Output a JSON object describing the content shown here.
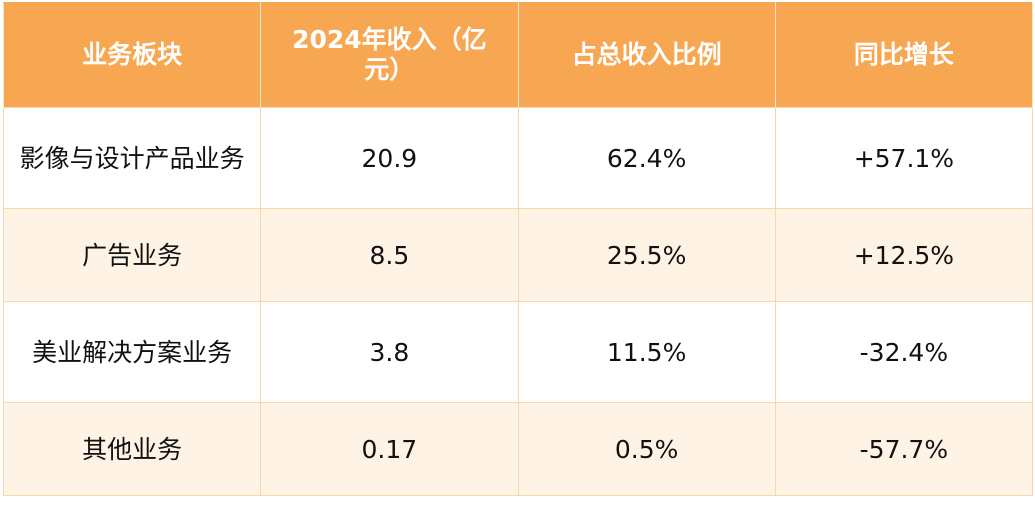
{
  "table": {
    "headers": [
      "业务板块",
      "2024年收入（亿元）",
      "占总收入比例",
      "同比增长"
    ],
    "rows": [
      [
        "影像与设计产品业务",
        "20.9",
        "62.4%",
        "+57.1%"
      ],
      [
        "广告业务",
        "8.5",
        "25.5%",
        "+12.5%"
      ],
      [
        "美业解决方案业务",
        "3.8",
        "11.5%",
        "-32.4%"
      ],
      [
        "其他业务",
        "0.17",
        "0.5%",
        "-57.7%"
      ]
    ]
  },
  "colors": {
    "header_bg": "#f7a752",
    "header_text": "#ffffff",
    "alt_row_bg": "#fff3e6",
    "border": "#f8d7ae"
  }
}
